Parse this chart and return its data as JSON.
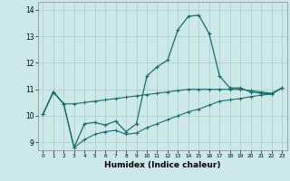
{
  "xlabel": "Humidex (Indice chaleur)",
  "bg_color": "#cce8e8",
  "grid_color": "#aacccc",
  "line_color": "#1a6b6b",
  "xlim": [
    -0.5,
    23.5
  ],
  "ylim": [
    8.7,
    14.3
  ],
  "yticks": [
    9,
    10,
    11,
    12,
    13,
    14
  ],
  "xticks": [
    0,
    1,
    2,
    3,
    4,
    5,
    6,
    7,
    8,
    9,
    10,
    11,
    12,
    13,
    14,
    15,
    16,
    17,
    18,
    19,
    20,
    21,
    22,
    23
  ],
  "series": {
    "main": {
      "x": [
        0,
        1,
        2,
        3,
        4,
        5,
        6,
        7,
        8,
        9,
        10,
        11,
        12,
        13,
        14,
        15,
        16,
        17,
        18,
        19,
        20,
        21,
        22,
        23
      ],
      "y": [
        10.05,
        10.9,
        10.45,
        8.8,
        9.7,
        9.75,
        9.65,
        9.8,
        9.4,
        9.7,
        11.5,
        11.85,
        12.1,
        13.25,
        13.75,
        13.8,
        13.1,
        11.5,
        11.05,
        11.05,
        10.9,
        10.85,
        10.82,
        11.05
      ]
    },
    "upper": {
      "x": [
        0,
        1,
        2,
        3,
        4,
        5,
        6,
        7,
        8,
        9,
        10,
        11,
        12,
        13,
        14,
        15,
        16,
        17,
        18,
        19,
        20,
        21,
        22,
        23
      ],
      "y": [
        10.05,
        10.9,
        10.45,
        10.45,
        10.5,
        10.55,
        10.6,
        10.65,
        10.7,
        10.75,
        10.8,
        10.85,
        10.9,
        10.95,
        11.0,
        11.0,
        11.0,
        11.0,
        11.0,
        11.0,
        10.95,
        10.9,
        10.85,
        11.05
      ]
    },
    "lower": {
      "x": [
        0,
        1,
        2,
        3,
        4,
        5,
        6,
        7,
        8,
        9,
        10,
        11,
        12,
        13,
        14,
        15,
        16,
        17,
        18,
        19,
        20,
        21,
        22,
        23
      ],
      "y": [
        10.05,
        10.9,
        10.45,
        8.8,
        9.1,
        9.3,
        9.4,
        9.45,
        9.3,
        9.35,
        9.55,
        9.7,
        9.85,
        10.0,
        10.15,
        10.25,
        10.4,
        10.55,
        10.6,
        10.65,
        10.72,
        10.78,
        10.82,
        11.05
      ]
    }
  }
}
